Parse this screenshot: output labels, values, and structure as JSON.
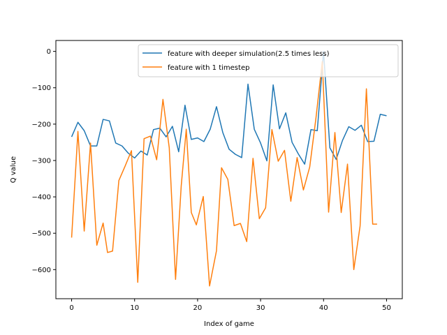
{
  "chart_data": {
    "type": "line",
    "xlabel": "Index of game",
    "ylabel": "Q value",
    "xlim": [
      -2.5,
      52.5
    ],
    "ylim": [
      -680,
      30
    ],
    "xticks": [
      0,
      10,
      20,
      30,
      40,
      50
    ],
    "yticks": [
      0,
      -100,
      -200,
      -300,
      -400,
      -500,
      -600
    ],
    "legend_position": "top-right",
    "grid": false,
    "series": [
      {
        "name": "feature with deeper simulation(2.5 times less)",
        "color": "#1f77b4",
        "x": [
          0,
          1,
          2,
          3,
          4,
          5,
          6,
          7,
          8,
          9,
          10,
          11,
          12,
          13,
          14,
          15,
          16,
          17,
          18,
          19,
          20,
          21,
          22,
          23,
          24,
          25,
          26,
          27,
          28,
          29,
          30,
          31,
          32,
          33,
          34,
          35,
          36,
          37,
          38,
          39,
          40,
          41,
          42,
          43,
          44,
          45,
          46,
          47,
          48,
          49,
          50
        ],
        "values": [
          -235,
          -195,
          -218,
          -260,
          -260,
          -187,
          -191,
          -252,
          -260,
          -280,
          -293,
          -274,
          -285,
          -215,
          -211,
          -235,
          -206,
          -276,
          -148,
          -242,
          -238,
          -248,
          -214,
          -152,
          -223,
          -269,
          -283,
          -292,
          -90,
          -214,
          -252,
          -301,
          -92,
          -213,
          -169,
          -250,
          -282,
          -310,
          -215,
          -218,
          0,
          -265,
          -297,
          -245,
          -207,
          -217,
          -203,
          -248,
          -247,
          -173,
          -177
        ]
      },
      {
        "name": "feature with 1 timestep",
        "color": "#ff7f0e",
        "x": [
          0,
          1,
          2,
          3,
          4,
          5,
          5.7,
          6.5,
          7.5,
          8.5,
          9.5,
          10.5,
          11.5,
          12.5,
          13.5,
          14.5,
          15.5,
          16.5,
          17.4,
          18.2,
          19,
          19.8,
          20.9,
          21.9,
          23,
          23.8,
          24.8,
          25.8,
          26.8,
          27.8,
          28.8,
          29.8,
          30.8,
          31.8,
          32.8,
          33.8,
          34.8,
          35.8,
          36.8,
          37.8,
          38.8,
          39.8,
          40.8,
          41.8,
          42.8,
          43.8,
          44.8,
          45.8,
          46.8,
          47.8,
          48.5
        ],
        "values": [
          -512,
          -220,
          -494,
          -252,
          -533,
          -472,
          -553,
          -549,
          -355,
          -315,
          -273,
          -635,
          -240,
          -233,
          -298,
          -132,
          -265,
          -627,
          -370,
          -214,
          -443,
          -477,
          -399,
          -645,
          -548,
          -320,
          -352,
          -479,
          -473,
          -523,
          -294,
          -460,
          -430,
          -215,
          -302,
          -272,
          -412,
          -292,
          -381,
          -318,
          -182,
          -28,
          -442,
          -223,
          -443,
          -310,
          -600,
          -480,
          -103,
          -475,
          -475
        ]
      }
    ]
  }
}
